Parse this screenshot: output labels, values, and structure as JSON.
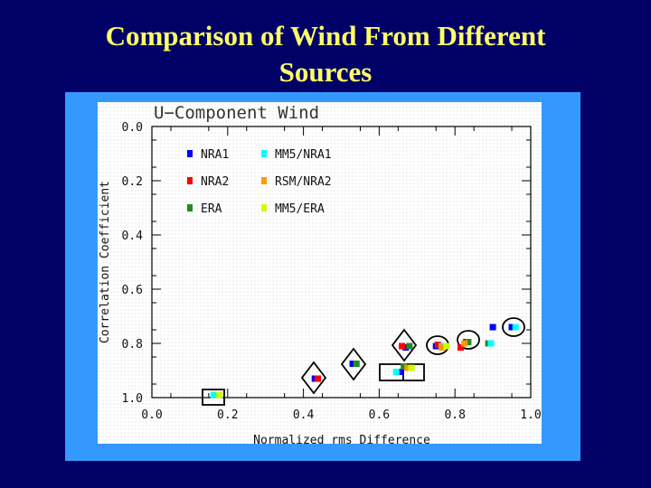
{
  "slide": {
    "title_line1": "Comparison of Wind From Different",
    "title_line2": "Sources"
  },
  "chart_data": {
    "type": "scatter",
    "title": "U−Component Wind",
    "xlabel": "Normalized rms Difference",
    "ylabel": "Correlation Coefficient",
    "xlim": [
      0.0,
      1.0
    ],
    "ylim": [
      0.0,
      1.0
    ],
    "y_inverted": true,
    "x_ticks": [
      "0.0",
      "0.2",
      "0.4",
      "0.6",
      "0.8",
      "1.0"
    ],
    "y_ticks": [
      "0.0",
      "0.2",
      "0.4",
      "0.6",
      "0.8",
      "1.0"
    ],
    "legend_position": "top-left",
    "series": [
      {
        "name": "NRA1",
        "color": "#0000ff",
        "points": [
          [
            0.17,
            0.99
          ],
          [
            0.43,
            0.93
          ],
          [
            0.53,
            0.875
          ],
          [
            0.655,
            0.905
          ],
          [
            0.67,
            0.815
          ],
          [
            0.75,
            0.81
          ],
          [
            0.83,
            0.795
          ],
          [
            0.9,
            0.74
          ],
          [
            0.95,
            0.74
          ]
        ]
      },
      {
        "name": "NRA2",
        "color": "#ff0000",
        "points": [
          [
            0.168,
            0.99
          ],
          [
            0.438,
            0.93
          ],
          [
            0.66,
            0.81
          ],
          [
            0.755,
            0.805
          ],
          [
            0.815,
            0.815
          ]
        ]
      },
      {
        "name": "ERA",
        "color": "#228b22",
        "points": [
          [
            0.54,
            0.875
          ],
          [
            0.665,
            0.885
          ],
          [
            0.68,
            0.81
          ],
          [
            0.835,
            0.795
          ],
          [
            0.888,
            0.8
          ]
        ]
      },
      {
        "name": "MM5/NRA1",
        "color": "#00ffff",
        "points": [
          [
            0.163,
            0.99
          ],
          [
            0.645,
            0.905
          ],
          [
            0.765,
            0.81
          ],
          [
            0.895,
            0.8
          ],
          [
            0.96,
            0.74
          ]
        ]
      },
      {
        "name": "RSM/NRA2",
        "color": "#ff9900",
        "points": [
          [
            0.675,
            0.89
          ],
          [
            0.765,
            0.815
          ],
          [
            0.825,
            0.8
          ]
        ]
      },
      {
        "name": "MM5/ERA",
        "color": "#ccff00",
        "points": [
          [
            0.178,
            0.99
          ],
          [
            0.685,
            0.89
          ],
          [
            0.778,
            0.81
          ]
        ]
      }
    ]
  }
}
